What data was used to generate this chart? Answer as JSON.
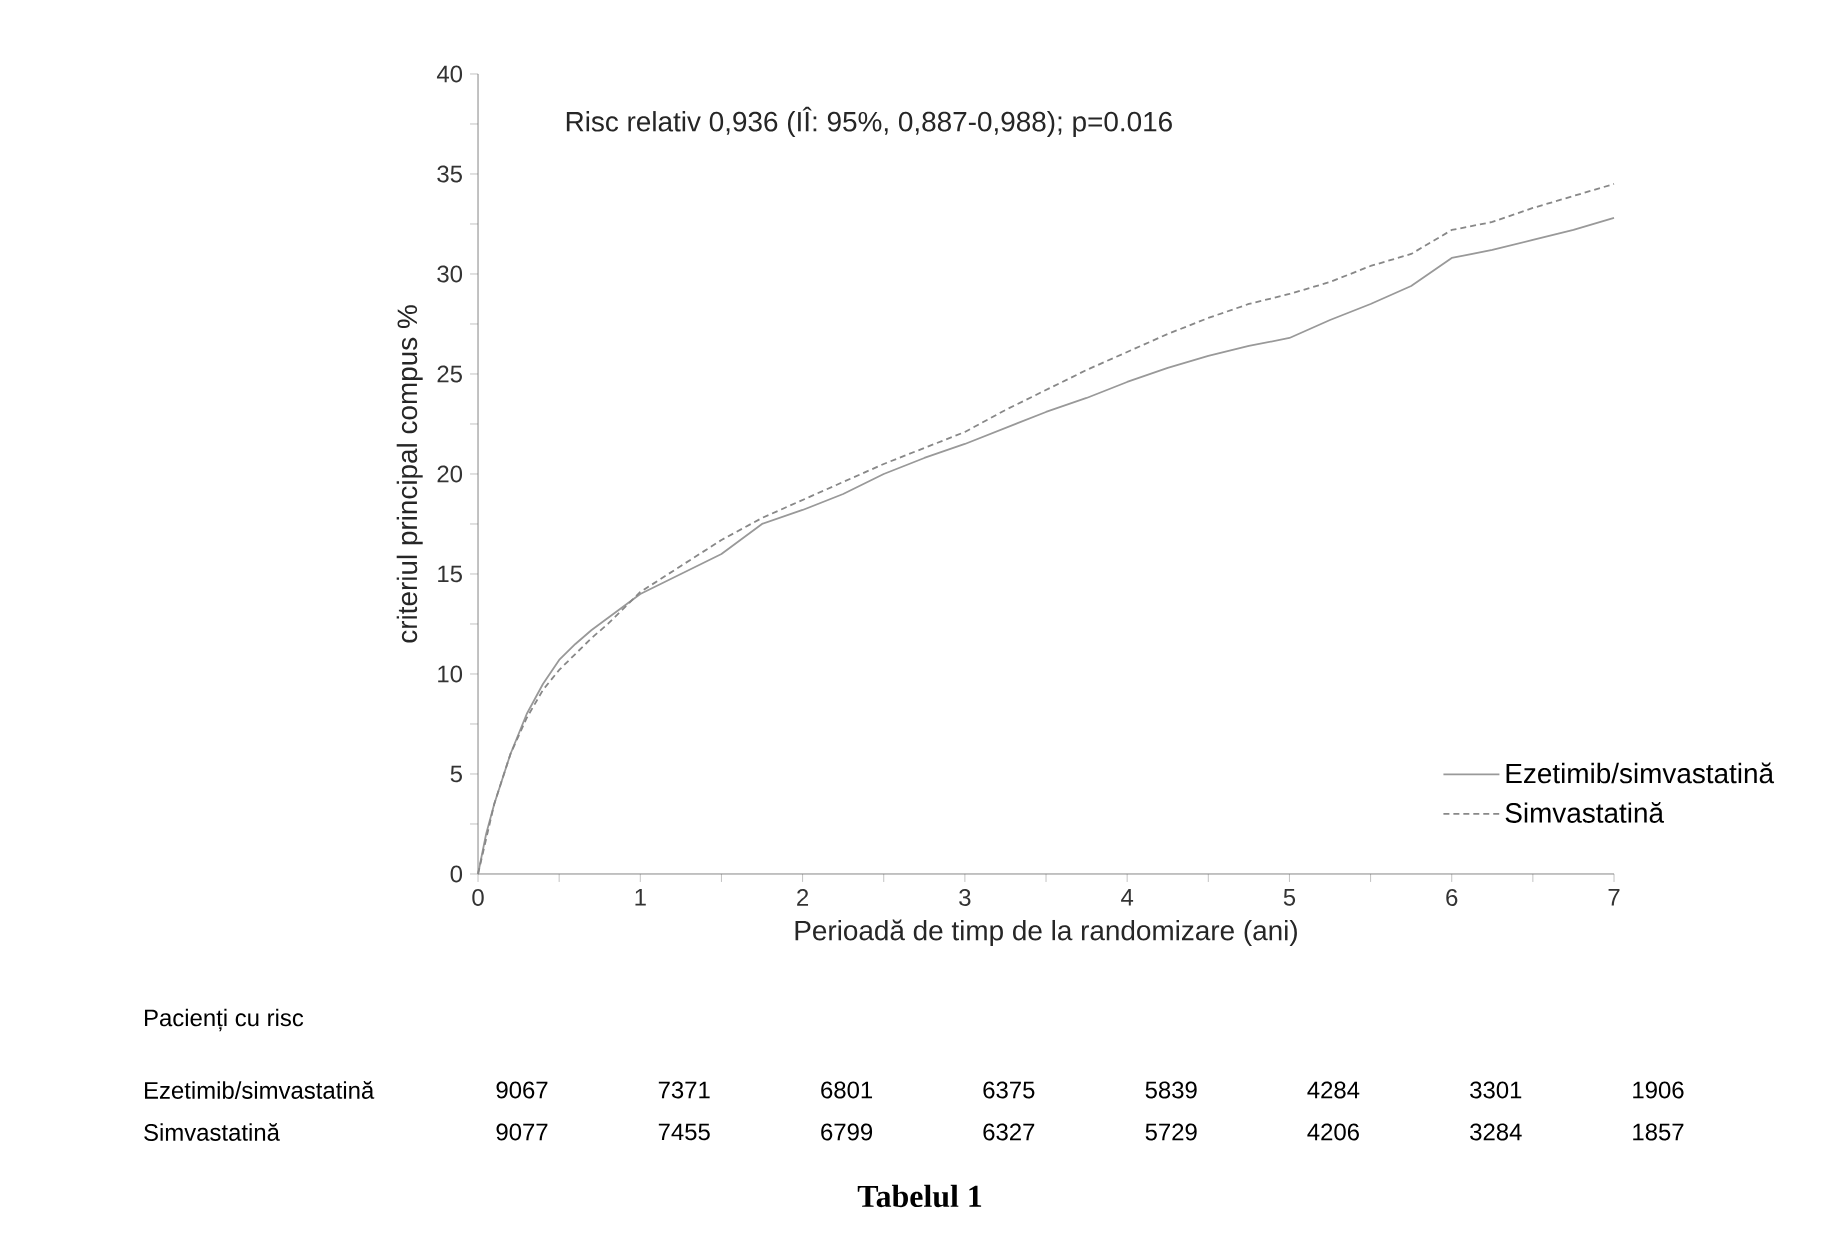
{
  "chart_data": {
    "type": "line",
    "xlabel": "Perioadă de timp de la randomizare (ani)",
    "ylabel": "criteriul principal compus %",
    "xlim": [
      0,
      7
    ],
    "ylim": [
      0,
      40
    ],
    "xticks": [
      0,
      {
        "value": 0.5,
        "label": null
      },
      1,
      {
        "value": 1.5,
        "label": null
      },
      2,
      {
        "value": 2.5,
        "label": null
      },
      3,
      {
        "value": 3.5,
        "label": null
      },
      4,
      {
        "value": 4.5,
        "label": null
      },
      5,
      {
        "value": 5.5,
        "label": null
      },
      6,
      {
        "value": 6.5,
        "label": null
      },
      7
    ],
    "yticks": [
      0,
      {
        "value": 2.5,
        "label": null
      },
      5,
      {
        "value": 7.5,
        "label": null
      },
      10,
      {
        "value": 12.5,
        "label": null
      },
      15,
      {
        "value": 17.5,
        "label": null
      },
      20,
      {
        "value": 22.5,
        "label": null
      },
      25,
      {
        "value": 27.5,
        "label": null
      },
      30,
      {
        "value": 32.5,
        "label": null
      },
      35,
      {
        "value": 37.5,
        "label": null
      },
      40
    ],
    "legend": "bottom right",
    "series": [
      {
        "name": "Ezetimib/simvastatină",
        "color": "#999999",
        "line_style": "solid",
        "x": [
          0,
          0.05,
          0.1,
          0.2,
          0.3,
          0.4,
          0.5,
          0.6,
          0.7,
          0.8,
          1,
          1.25,
          1.5,
          1.75,
          2,
          2.25,
          2.5,
          2.75,
          3,
          3.25,
          3.5,
          3.75,
          4,
          4.25,
          4.5,
          4.75,
          5,
          5.25,
          5.5,
          5.75,
          6,
          6.25,
          6.5,
          6.75,
          7
        ],
        "values": [
          0,
          2,
          3.5,
          6,
          8,
          9.5,
          10.7,
          11.5,
          12.2,
          12.8,
          14.0,
          15,
          16,
          17.5,
          18.2,
          19,
          20,
          20.8,
          21.5,
          22.3,
          23.1,
          23.8,
          24.6,
          25.3,
          25.9,
          26.4,
          26.8,
          27.7,
          28.5,
          29.4,
          30.8,
          31.2,
          31.7,
          32.2,
          32.8
        ]
      },
      {
        "name": "Simvastatină",
        "color": "#888888",
        "line_style": "dashed",
        "x": [
          0,
          0.1,
          0.2,
          0.3,
          0.4,
          0.5,
          0.6,
          0.7,
          0.8,
          1,
          1.25,
          1.5,
          1.75,
          2,
          2.25,
          2.5,
          2.75,
          3,
          3.25,
          3.5,
          3.75,
          4,
          4.25,
          4.5,
          4.75,
          5,
          5.25,
          5.5,
          5.75,
          6,
          6.25,
          6.5,
          6.75,
          7
        ],
        "values": [
          0,
          3.5,
          6,
          7.8,
          9.2,
          10.2,
          11,
          11.8,
          12.5,
          14.1,
          15.4,
          16.7,
          17.8,
          18.7,
          19.6,
          20.5,
          21.3,
          22.1,
          23.2,
          24.2,
          25.2,
          26.1,
          27,
          27.8,
          28.5,
          29.0,
          29.6,
          30.4,
          31,
          32.2,
          32.6,
          33.3,
          33.9,
          34.5
        ]
      }
    ],
    "annotations": [
      "Risc relativ 0,936 (IÎ: 95%, 0,887-0,988); p=0.016",
      "Pacienți cu risc",
      "Ezetimib/simvastatină",
      "9067",
      "7371",
      "6801",
      "6375",
      "5839",
      "4284",
      "3301",
      "1906",
      "Simvastatină",
      "9077",
      "7455",
      "6799",
      "6327",
      "5729",
      "4206",
      "3284",
      "1857",
      "Tabelul 1"
    ]
  }
}
